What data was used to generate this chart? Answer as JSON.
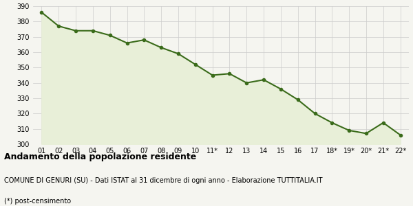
{
  "x_labels": [
    "01",
    "02",
    "03",
    "04",
    "05",
    "06",
    "07",
    "08",
    "09",
    "10",
    "11*",
    "12",
    "13",
    "14",
    "15",
    "16",
    "17",
    "18*",
    "19*",
    "20*",
    "21*",
    "22*"
  ],
  "y_values": [
    386,
    377,
    374,
    374,
    371,
    366,
    368,
    363,
    359,
    352,
    345,
    346,
    340,
    342,
    336,
    329,
    320,
    314,
    309,
    307,
    314,
    306
  ],
  "line_color": "#3a6b1a",
  "fill_color": "#e8efd8",
  "marker": "o",
  "marker_size": 3,
  "line_width": 1.5,
  "ylim": [
    300,
    390
  ],
  "yticks": [
    300,
    310,
    320,
    330,
    340,
    350,
    360,
    370,
    380,
    390
  ],
  "grid_color": "#cccccc",
  "bg_color": "#f5f5f0",
  "title": "Andamento della popolazione residente",
  "subtitle": "COMUNE DI GENURI (SU) - Dati ISTAT al 31 dicembre di ogni anno - Elaborazione TUTTITALIA.IT",
  "footnote": "(*) post-censimento",
  "title_fontsize": 9,
  "subtitle_fontsize": 7,
  "footnote_fontsize": 7,
  "tick_fontsize": 7
}
